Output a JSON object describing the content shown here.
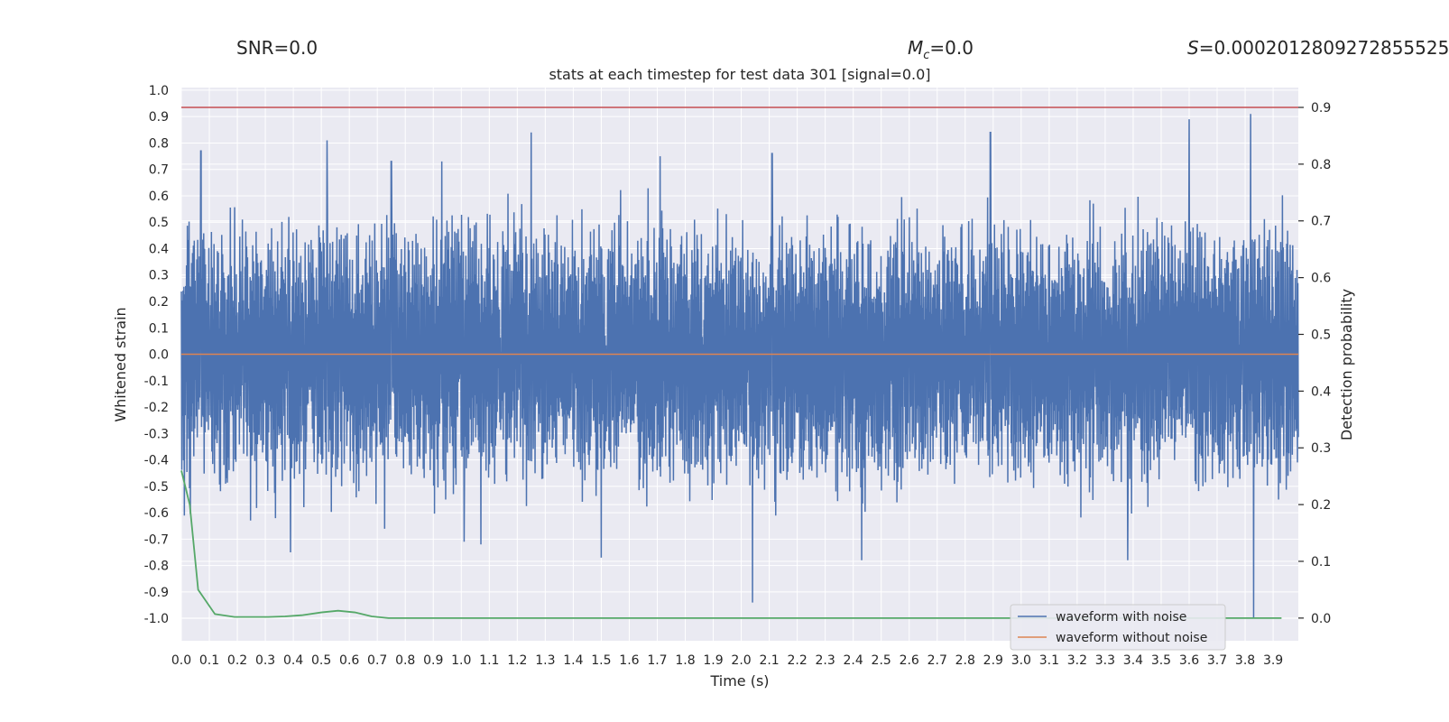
{
  "header": {
    "snr_text": "SNR=0.0",
    "mc_symbol": "M",
    "mc_sub": "c",
    "mc_value": "=0.0",
    "s_symbol": "S",
    "s_value": "=0.0002012809272855525"
  },
  "chart_data": {
    "type": "line",
    "title": "stats at each timestep for test data 301 [signal=0.0]",
    "xlabel": "Time (s)",
    "ylabel_left": "Whitened strain",
    "ylabel_right": "Detection probability",
    "xlim": [
      0.0,
      3.99
    ],
    "ylim_left": [
      -1.085,
      1.01
    ],
    "ylim_right": [
      -0.04,
      0.935
    ],
    "x_ticks": [
      "0.0",
      "0.1",
      "0.2",
      "0.3",
      "0.4",
      "0.5",
      "0.6",
      "0.7",
      "0.8",
      "0.9",
      "1.0",
      "1.1",
      "1.2",
      "1.3",
      "1.4",
      "1.5",
      "1.6",
      "1.7",
      "1.8",
      "1.9",
      "2.0",
      "2.1",
      "2.2",
      "2.3",
      "2.4",
      "2.5",
      "2.6",
      "2.7",
      "2.8",
      "2.9",
      "3.0",
      "3.1",
      "3.2",
      "3.3",
      "3.4",
      "3.5",
      "3.6",
      "3.7",
      "3.8",
      "3.9"
    ],
    "y_ticks_left": [
      "1.0",
      "0.9",
      "0.8",
      "0.7",
      "0.6",
      "0.5",
      "0.4",
      "0.3",
      "0.2",
      "0.1",
      "0.0",
      "-0.1",
      "-0.2",
      "-0.3",
      "-0.4",
      "-0.5",
      "-0.6",
      "-0.7",
      "-0.8",
      "-0.9",
      "-1.0"
    ],
    "y_ticks_right": [
      "0.9",
      "0.8",
      "0.7",
      "0.6",
      "0.5",
      "0.4",
      "0.3",
      "0.2",
      "0.1",
      "0.0"
    ],
    "threshold": 0.9,
    "series": [
      {
        "name": "waveform with noise",
        "axis": "left",
        "color": "#4c72b0",
        "description": "dense whitened noise, peak-envelope samples (time, value)",
        "envelope_peaks": [
          [
            0.07,
            0.77
          ],
          [
            0.52,
            0.81
          ],
          [
            0.75,
            0.73
          ],
          [
            0.93,
            0.73
          ],
          [
            1.25,
            0.84
          ],
          [
            1.71,
            0.75
          ],
          [
            2.11,
            0.76
          ],
          [
            2.89,
            0.84
          ],
          [
            3.6,
            0.89
          ],
          [
            3.82,
            0.91
          ],
          [
            0.39,
            -0.75
          ],
          [
            1.01,
            -0.71
          ],
          [
            1.07,
            -0.72
          ],
          [
            1.5,
            -0.77
          ],
          [
            2.04,
            -0.94
          ],
          [
            2.43,
            -0.78
          ],
          [
            3.38,
            -0.78
          ],
          [
            3.83,
            -1.0
          ]
        ]
      },
      {
        "name": "waveform without noise",
        "axis": "left",
        "color": "#dd8452",
        "x": [
          0.0,
          3.99
        ],
        "y": [
          0.0,
          0.0
        ]
      },
      {
        "name": "detection probability",
        "axis": "right",
        "color": "#55a868",
        "x": [
          0.0,
          0.03,
          0.06,
          0.12,
          0.19,
          0.25,
          0.31,
          0.37,
          0.43,
          0.5,
          0.56,
          0.62,
          0.68,
          0.74,
          0.8,
          1.0,
          2.0,
          3.0,
          3.93
        ],
        "y": [
          0.26,
          0.2,
          0.05,
          0.007,
          0.002,
          0.002,
          0.002,
          0.003,
          0.005,
          0.01,
          0.013,
          0.01,
          0.003,
          0.0,
          0.0,
          0.0,
          0.0,
          0.0,
          0.0
        ]
      }
    ],
    "legend": {
      "placement": "lower-right",
      "entries": [
        "waveform with noise",
        "waveform without noise"
      ]
    }
  }
}
